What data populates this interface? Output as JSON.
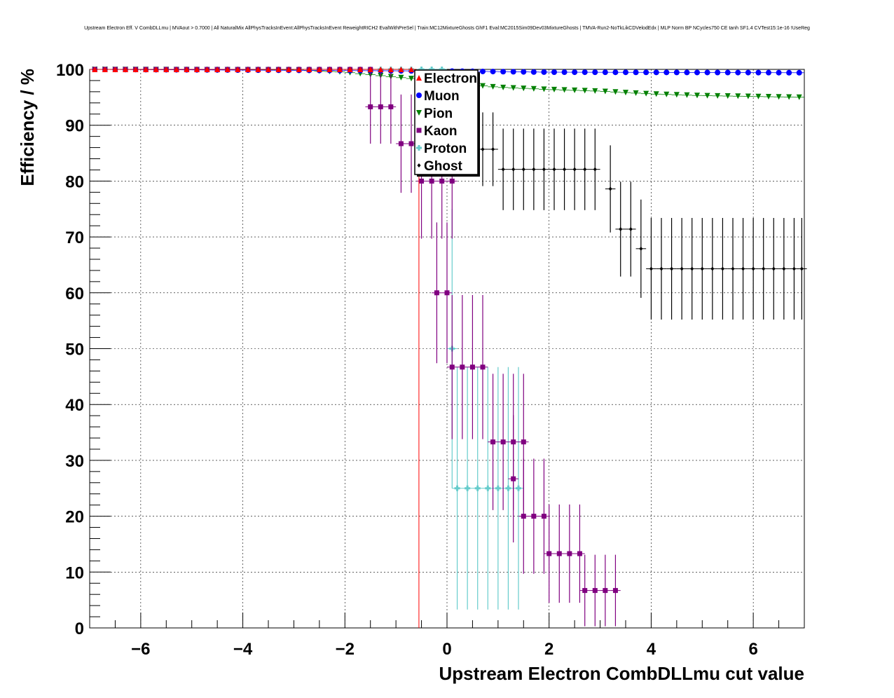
{
  "chart_data": {
    "type": "scatter",
    "title": "Upstream Electron Eff. V CombDLLmu | MVAout > 0.7000 | All NaturalMix AllPhysTracksInEvent:AllPhysTracksInEvent ReweightRICH2 EvalWithPreSel | Train:MC12MixtureGhosts GhF1 Eval:MC2015Sim09Dev03MixtureGhosts | TMVA-Run2-NoTkLikCDVelodEdx | MLP Norm BP NCycles750 CE tanh SF1.4 CVTest15:1e-16 !UseReg",
    "xlabel": "Upstream Electron CombDLLmu cut value",
    "ylabel": "Efficiency / %",
    "xlim": [
      -7,
      7
    ],
    "ylim": [
      0,
      100
    ],
    "xticks": [
      -6,
      -4,
      -2,
      0,
      2,
      4,
      6
    ],
    "xtick_labels": [
      "−6",
      "−4",
      "−2",
      "0",
      "2",
      "4",
      "6"
    ],
    "yticks": [
      0,
      10,
      20,
      30,
      40,
      50,
      60,
      70,
      80,
      90,
      100
    ],
    "yticks_labels": [
      "0",
      "10",
      "20",
      "30",
      "40",
      "50",
      "60",
      "70",
      "80",
      "90",
      "100"
    ],
    "grid": true,
    "legend_position": "top-center",
    "series": [
      {
        "name": "Electron",
        "color": "#ff0000",
        "marker": "triangle-up",
        "points": [
          [
            -6.9,
            100
          ],
          [
            -0.6,
            100
          ]
        ],
        "drop_line": {
          "x": -0.55,
          "y_top": 100,
          "y_bottom": 0
        }
      },
      {
        "name": "Muon",
        "color": "#0000ff",
        "marker": "circle",
        "x_range": [
          -6.9,
          6.9
        ],
        "step": 0.2,
        "segments": [
          [
            -7,
            100
          ],
          [
            0,
            99.7
          ],
          [
            2,
            99.5
          ],
          [
            7,
            99.4
          ]
        ]
      },
      {
        "name": "Pion",
        "color": "#008000",
        "marker": "triangle-down",
        "x_range": [
          -6.9,
          6.9
        ],
        "step": 0.2,
        "segments": [
          [
            -7,
            100
          ],
          [
            -3,
            99.9
          ],
          [
            -2,
            99.5
          ],
          [
            -1,
            98.6
          ],
          [
            0,
            97.8
          ],
          [
            0.5,
            97.2
          ],
          [
            1,
            96.8
          ],
          [
            2,
            96.4
          ],
          [
            3,
            96.1
          ],
          [
            4,
            95.6
          ],
          [
            5,
            95.3
          ],
          [
            7,
            95.0
          ]
        ]
      },
      {
        "name": "Kaon",
        "color": "#800080",
        "marker": "square",
        "points": [
          {
            "x": -6.9,
            "y": 100
          },
          {
            "x": -1.5,
            "y": 100
          },
          {
            "x": -1.5,
            "y": 93.3,
            "e": 6.6
          },
          {
            "x": -1.3,
            "y": 93.3,
            "e": 6.6
          },
          {
            "x": -1.1,
            "y": 93.3,
            "e": 6.6
          },
          {
            "x": -0.9,
            "y": 86.7,
            "e": 8.8
          },
          {
            "x": -0.7,
            "y": 86.7,
            "e": 8.8
          },
          {
            "x": -0.5,
            "y": 80.0,
            "e": 10.3
          },
          {
            "x": -0.3,
            "y": 80.0,
            "e": 10.3
          },
          {
            "x": -0.1,
            "y": 80.0,
            "e": 10.3
          },
          {
            "x": 0.1,
            "y": 80.0,
            "e": 10.3
          },
          {
            "x": -0.2,
            "y": 60.0,
            "e": 12.6
          },
          {
            "x": 0.0,
            "y": 60.0,
            "e": 12.6
          },
          {
            "x": 0.1,
            "y": 46.7,
            "e": 12.9
          },
          {
            "x": 0.3,
            "y": 46.7,
            "e": 12.9
          },
          {
            "x": 0.5,
            "y": 46.7,
            "e": 12.9
          },
          {
            "x": 0.7,
            "y": 46.7,
            "e": 12.9
          },
          {
            "x": 0.9,
            "y": 33.3,
            "e": 12.2
          },
          {
            "x": 1.1,
            "y": 33.3,
            "e": 12.2
          },
          {
            "x": 1.3,
            "y": 33.3,
            "e": 12.2
          },
          {
            "x": 1.5,
            "y": 33.3,
            "e": 12.2
          },
          {
            "x": 1.3,
            "y": 26.7,
            "e": 11.4
          },
          {
            "x": 1.5,
            "y": 20.0,
            "e": 10.3
          },
          {
            "x": 1.7,
            "y": 20.0,
            "e": 10.3
          },
          {
            "x": 1.9,
            "y": 20.0,
            "e": 10.3
          },
          {
            "x": 2.0,
            "y": 13.3,
            "e": 8.8
          },
          {
            "x": 2.2,
            "y": 13.3,
            "e": 8.8
          },
          {
            "x": 2.4,
            "y": 13.3,
            "e": 8.8
          },
          {
            "x": 2.6,
            "y": 13.3,
            "e": 8.8
          },
          {
            "x": 2.7,
            "y": 6.7,
            "e": 6.4
          },
          {
            "x": 2.9,
            "y": 6.7,
            "e": 6.4
          },
          {
            "x": 3.1,
            "y": 6.7,
            "e": 6.4
          },
          {
            "x": 3.3,
            "y": 6.7,
            "e": 6.4
          }
        ]
      },
      {
        "name": "Proton",
        "color": "#66cccc",
        "marker": "cross",
        "points": [
          {
            "x": -6.9,
            "y": 100
          },
          {
            "x": 0.0,
            "y": 100
          },
          {
            "x": 0.1,
            "y": 50.0,
            "e": 25.0
          },
          {
            "x": 0.2,
            "y": 25.0,
            "e": 21.7
          },
          {
            "x": 0.4,
            "y": 25.0,
            "e": 21.7
          },
          {
            "x": 0.6,
            "y": 25.0,
            "e": 21.7
          },
          {
            "x": 0.8,
            "y": 25.0,
            "e": 21.7
          },
          {
            "x": 1.0,
            "y": 25.0,
            "e": 21.7
          },
          {
            "x": 1.2,
            "y": 25.0,
            "e": 21.7
          },
          {
            "x": 1.4,
            "y": 25.0,
            "e": 21.7
          }
        ]
      },
      {
        "name": "Ghost",
        "color": "#000000",
        "marker": "diamond",
        "points": [
          {
            "x": -6.9,
            "y": 100
          },
          {
            "x": -0.6,
            "y": 100
          },
          {
            "x": 0.7,
            "y": 85.7,
            "e": 6.6
          },
          {
            "x": 0.9,
            "y": 85.7,
            "e": 6.6
          },
          {
            "x": 1.1,
            "y": 82.1,
            "e": 7.3
          },
          {
            "x": 1.3,
            "y": 82.1,
            "e": 7.3
          },
          {
            "x": 1.5,
            "y": 82.1,
            "e": 7.3
          },
          {
            "x": 1.7,
            "y": 82.1,
            "e": 7.3
          },
          {
            "x": 1.9,
            "y": 82.1,
            "e": 7.3
          },
          {
            "x": 2.1,
            "y": 82.1,
            "e": 7.3
          },
          {
            "x": 2.3,
            "y": 82.1,
            "e": 7.3
          },
          {
            "x": 2.5,
            "y": 82.1,
            "e": 7.3
          },
          {
            "x": 2.7,
            "y": 82.1,
            "e": 7.3
          },
          {
            "x": 2.9,
            "y": 82.1,
            "e": 7.3
          },
          {
            "x": 3.2,
            "y": 78.6,
            "e": 7.8
          },
          {
            "x": 3.4,
            "y": 71.4,
            "e": 8.5
          },
          {
            "x": 3.6,
            "y": 71.4,
            "e": 8.5
          },
          {
            "x": 3.8,
            "y": 67.9,
            "e": 8.8
          },
          {
            "x": 4.0,
            "y": 64.3,
            "e": 9.1
          },
          {
            "x": 4.2,
            "y": 64.3,
            "e": 9.1
          },
          {
            "x": 4.4,
            "y": 64.3,
            "e": 9.1
          },
          {
            "x": 4.6,
            "y": 64.3,
            "e": 9.1
          },
          {
            "x": 4.8,
            "y": 64.3,
            "e": 9.1
          },
          {
            "x": 5.0,
            "y": 64.3,
            "e": 9.1
          },
          {
            "x": 5.2,
            "y": 64.3,
            "e": 9.1
          },
          {
            "x": 5.4,
            "y": 64.3,
            "e": 9.1
          },
          {
            "x": 5.6,
            "y": 64.3,
            "e": 9.1
          },
          {
            "x": 5.8,
            "y": 64.3,
            "e": 9.1
          },
          {
            "x": 6.0,
            "y": 64.3,
            "e": 9.1
          },
          {
            "x": 6.2,
            "y": 64.3,
            "e": 9.1
          },
          {
            "x": 6.4,
            "y": 64.3,
            "e": 9.1
          },
          {
            "x": 6.6,
            "y": 64.3,
            "e": 9.1
          },
          {
            "x": 6.8,
            "y": 64.3,
            "e": 9.1
          },
          {
            "x": 6.95,
            "y": 64.3,
            "e": 9.1
          }
        ]
      }
    ]
  }
}
